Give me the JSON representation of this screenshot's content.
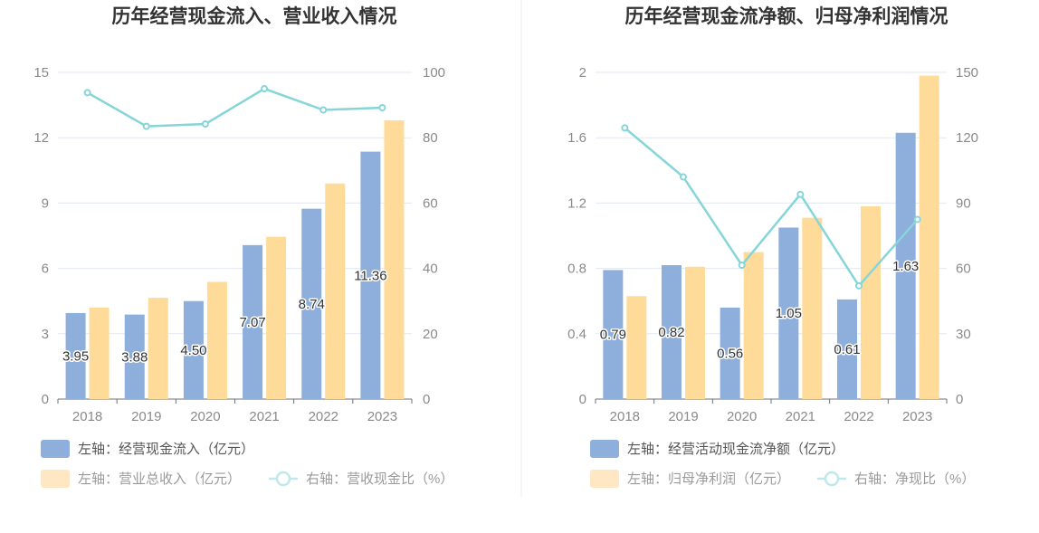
{
  "chart_data": [
    {
      "type": "bar",
      "title": "历年经营现金流入、营业收入情况",
      "categories": [
        "2018",
        "2019",
        "2020",
        "2021",
        "2022",
        "2023"
      ],
      "left_axis": {
        "min": 0,
        "max": 15,
        "ticks": [
          "0",
          "3",
          "6",
          "9",
          "12",
          "15"
        ]
      },
      "right_axis": {
        "min": 0,
        "max": 100,
        "ticks": [
          "0",
          "20",
          "40",
          "60",
          "80",
          "100"
        ]
      },
      "series": [
        {
          "name": "左轴：经营现金流入（亿元）",
          "type": "bar",
          "axis": "left",
          "color": "#8eaedb",
          "values": [
            3.95,
            3.88,
            4.5,
            7.07,
            8.74,
            11.36
          ],
          "labels": [
            "3.95",
            "3.88",
            "4.50",
            "7.07",
            "8.74",
            "11.36"
          ]
        },
        {
          "name": "左轴：营业总收入（亿元）",
          "type": "bar",
          "axis": "left",
          "color": "#ffdb9a",
          "values": [
            4.2,
            4.65,
            5.38,
            7.45,
            9.9,
            12.8
          ]
        },
        {
          "name": "右轴：营收现金比（%）",
          "type": "line",
          "axis": "right",
          "color": "#86d5d9",
          "values": [
            93.8,
            83.5,
            84.2,
            95,
            88.5,
            89.2
          ]
        }
      ],
      "legend": {
        "position": "bottom-left"
      },
      "grid": true
    },
    {
      "type": "bar",
      "title": "历年经营现金流净额、归母净利润情况",
      "categories": [
        "2018",
        "2019",
        "2020",
        "2021",
        "2022",
        "2023"
      ],
      "left_axis": {
        "min": 0,
        "max": 2,
        "ticks": [
          "0",
          "0.4",
          "0.8",
          "1.2",
          "1.6",
          "2"
        ]
      },
      "right_axis": {
        "min": 0,
        "max": 150,
        "ticks": [
          "0",
          "30",
          "60",
          "90",
          "120",
          "150"
        ]
      },
      "series": [
        {
          "name": "左轴：经营活动现金流净额（亿元）",
          "type": "bar",
          "axis": "left",
          "color": "#8eaedb",
          "values": [
            0.79,
            0.82,
            0.56,
            1.05,
            0.61,
            1.63
          ],
          "labels": [
            "0.79",
            "0.82",
            "0.56",
            "1.05",
            "0.61",
            "1.63"
          ]
        },
        {
          "name": "左轴：归母净利润（亿元）",
          "type": "bar",
          "axis": "left",
          "color": "#ffdb9a",
          "values": [
            0.63,
            0.81,
            0.9,
            1.11,
            1.18,
            1.98
          ]
        },
        {
          "name": "右轴：净现比（%）",
          "type": "line",
          "axis": "right",
          "color": "#86d5d9",
          "values": [
            124.5,
            102,
            61.5,
            94,
            52,
            82.5
          ]
        }
      ],
      "legend": {
        "position": "bottom-left"
      },
      "grid": true
    }
  ]
}
